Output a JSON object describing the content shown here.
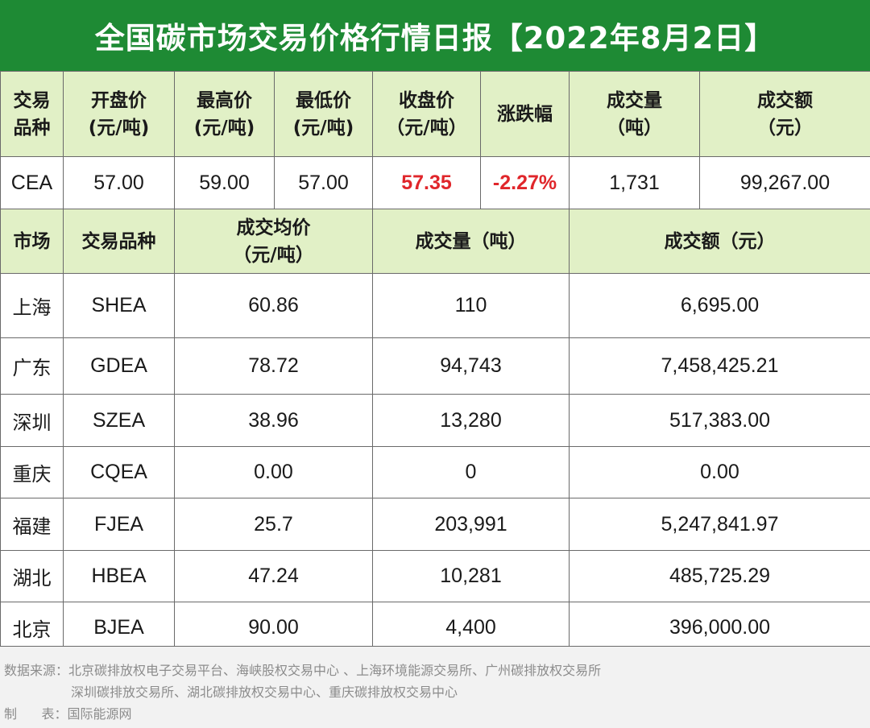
{
  "title": "全国碳市场交易价格行情日报【2022年8月2日】",
  "national": {
    "headers": [
      [
        "交易",
        "品种"
      ],
      [
        "开盘价",
        "(元/吨)"
      ],
      [
        "最高价",
        "(元/吨)"
      ],
      [
        "最低价",
        "(元/吨)"
      ],
      [
        "收盘价",
        "（元/吨）"
      ],
      [
        "涨跌幅"
      ],
      [
        "成交量",
        "（吨）"
      ],
      [
        "成交额",
        "（元）"
      ]
    ],
    "row": {
      "variety": "CEA",
      "open": "57.00",
      "high": "59.00",
      "low": "57.00",
      "close": "57.35",
      "change": "-2.27%",
      "volume": "1,731",
      "amount": "99,267.00"
    }
  },
  "regional": {
    "headers": {
      "market": "市场",
      "variety": "交易品种",
      "avg_price_1": "成交均价",
      "avg_price_2": "（元/吨）",
      "volume": "成交量（吨）",
      "amount": "成交额（元）"
    },
    "rows": [
      {
        "market": "上海",
        "variety": "SHEA",
        "avg": "60.86",
        "volume": "110",
        "amount": "6,695.00"
      },
      {
        "market": "广东",
        "variety": "GDEA",
        "avg": "78.72",
        "volume": "94,743",
        "amount": "7,458,425.21"
      },
      {
        "market": "深圳",
        "variety": "SZEA",
        "avg": "38.96",
        "volume": "13,280",
        "amount": "517,383.00"
      },
      {
        "market": "重庆",
        "variety": "CQEA",
        "avg": "0.00",
        "volume": "0",
        "amount": "0.00"
      },
      {
        "market": "福建",
        "variety": "FJEA",
        "avg": "25.7",
        "volume": "203,991",
        "amount": "5,247,841.97"
      },
      {
        "market": "湖北",
        "variety": "HBEA",
        "avg": "47.24",
        "volume": "10,281",
        "amount": "485,725.29"
      },
      {
        "market": "北京",
        "variety": "BJEA",
        "avg": "90.00",
        "volume": "4,400",
        "amount": "396,000.00"
      }
    ]
  },
  "footer": {
    "source_line1": "数据来源：北京碳排放权电子交易平台、海峡股权交易中心 、上海环境能源交易所、广州碳排放权交易所",
    "source_line2": "深圳碳排放交易所、湖北碳排放权交易中心、重庆碳排放权交易中心",
    "maker": "制      表：国际能源网"
  },
  "colors": {
    "title_bg": "#1e8a34",
    "header_bg": "#e1f0c6",
    "negative": "#e0262b",
    "footer_bg": "#f2f2f2"
  }
}
